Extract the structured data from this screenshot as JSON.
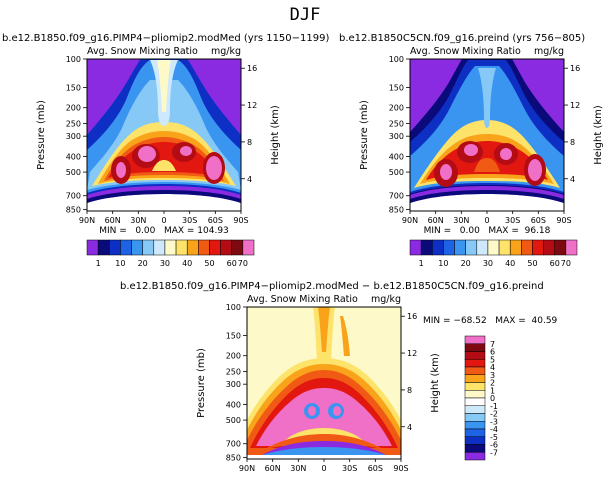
{
  "page_title": "DJF",
  "colors": {
    "abs_scale": [
      "#8a2be2",
      "#0a0a7a",
      "#0d2fc4",
      "#1e63e6",
      "#3a95f0",
      "#86c9f7",
      "#cde9fb",
      "#fdf9c8",
      "#fde36a",
      "#f9a31a",
      "#f05a14",
      "#e2170f",
      "#b40c14",
      "#7d0a10",
      "#f070c8"
    ],
    "diff_scale": [
      "#8a2be2",
      "#0a0a7a",
      "#0d2fc4",
      "#1e63e6",
      "#3a95f0",
      "#86c9f7",
      "#cde9fb",
      "#ffffff",
      "#fdf9c8",
      "#fde36a",
      "#f9a31a",
      "#f05a14",
      "#e2170f",
      "#b40c14",
      "#7d0a10",
      "#f070c8"
    ]
  },
  "chart_data": [
    {
      "type": "heatmap",
      "title": "b.e12.B1850.f09_g16.PIMP4−pliomip2.modMed (yrs 1150−1199)",
      "variable": "Avg. Snow Mixing Ratio",
      "units": "mg/kg",
      "xlabel": "",
      "ylabel": "Pressure (mb)",
      "ylabel_right": "Height (km)",
      "x_ticks": [
        "90N",
        "60N",
        "30N",
        "0",
        "30S",
        "60S",
        "90S"
      ],
      "y_ticks": [
        100,
        150,
        200,
        250,
        300,
        400,
        500,
        700,
        850
      ],
      "y_ticks_right": [
        16,
        12,
        8,
        4
      ],
      "stats": "MIN =   0.00   MAX = 104.93",
      "min": 0.0,
      "max": 104.93,
      "levels": [
        1,
        10,
        20,
        30,
        40,
        50,
        60,
        70
      ]
    },
    {
      "type": "heatmap",
      "title": "b.e12.B1850C5CN.f09_g16.preind (yrs 756−805)",
      "variable": "Avg. Snow Mixing Ratio",
      "units": "mg/kg",
      "xlabel": "",
      "ylabel": "Pressure (mb)",
      "ylabel_right": "Height (km)",
      "x_ticks": [
        "90N",
        "60N",
        "30N",
        "0",
        "30S",
        "60S",
        "90S"
      ],
      "y_ticks": [
        100,
        150,
        200,
        250,
        300,
        400,
        500,
        700,
        850
      ],
      "y_ticks_right": [
        16,
        12,
        8,
        4
      ],
      "stats": "MIN =   0.00   MAX =  96.18",
      "min": 0.0,
      "max": 96.18,
      "levels": [
        1,
        10,
        20,
        30,
        40,
        50,
        60,
        70
      ]
    },
    {
      "type": "heatmap",
      "title": "b.e12.B1850.f09_g16.PIMP4−pliomip2.modMed − b.e12.B1850C5CN.f09_g16.preind",
      "variable": "Avg. Snow Mixing Ratio",
      "units": "mg/kg",
      "xlabel": "",
      "ylabel": "Pressure (mb)",
      "ylabel_right": "Height (km)",
      "x_ticks": [
        "90N",
        "60N",
        "30N",
        "0",
        "30S",
        "60S",
        "90S"
      ],
      "y_ticks": [
        100,
        150,
        200,
        250,
        300,
        400,
        500,
        700,
        850
      ],
      "y_ticks_right": [
        16,
        12,
        8,
        4
      ],
      "stats": "MIN = −68.52   MAX =  40.59",
      "min": -68.52,
      "max": 40.59,
      "levels": [
        -7,
        -6,
        -5,
        -4,
        -3,
        -2,
        -1,
        0,
        1,
        2,
        3,
        4,
        5,
        6,
        7
      ]
    }
  ]
}
